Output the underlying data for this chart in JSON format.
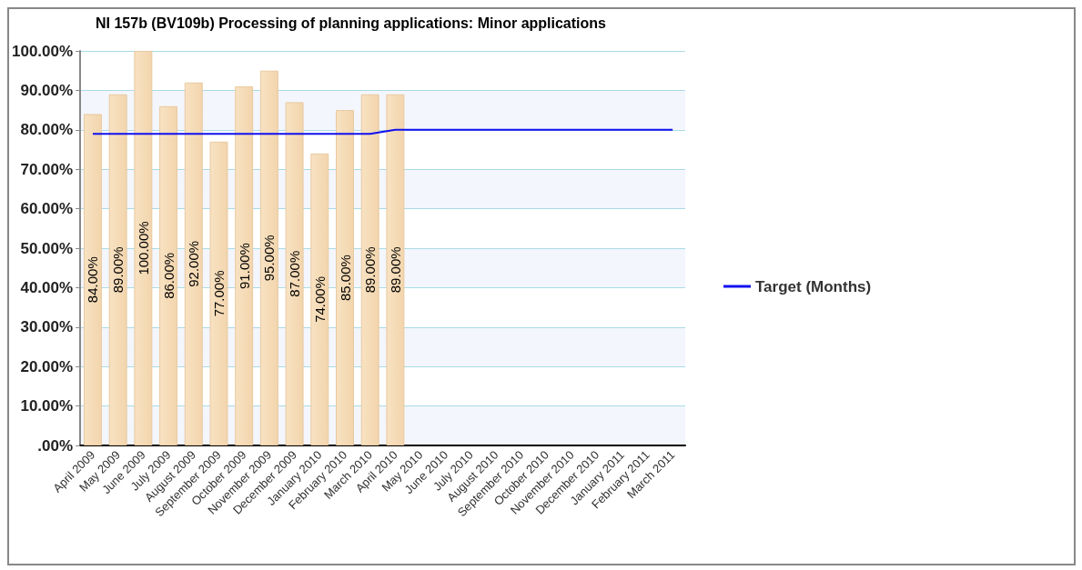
{
  "chart_data": {
    "type": "bar",
    "title": "NI 157b (BV109b) Processing of planning applications: Minor applications",
    "categories": [
      "April 2009",
      "May 2009",
      "June 2009",
      "July 2009",
      "August 2009",
      "September 2009",
      "October 2009",
      "November 2009",
      "December 2009",
      "January 2010",
      "February 2010",
      "March 2010",
      "April 2010",
      "May 2010",
      "June 2010",
      "July 2010",
      "August 2010",
      "September 2010",
      "October 2010",
      "November 2010",
      "December 2010",
      "January 2011",
      "February 2011",
      "March 2011"
    ],
    "series": [
      {
        "color": "#f2d5ad",
        "values": [
          84,
          89,
          100,
          86,
          92,
          77,
          91,
          95,
          87,
          74,
          85,
          89,
          89,
          null,
          null,
          null,
          null,
          null,
          null,
          null,
          null,
          null,
          null,
          null
        ],
        "value_labels": [
          "84.00%",
          "89.00%",
          "100.00%",
          "86.00%",
          "92.00%",
          "77.00%",
          "91.00%",
          "95.00%",
          "87.00%",
          "74.00%",
          "85.00%",
          "89.00%",
          "89.00%",
          null,
          null,
          null,
          null,
          null,
          null,
          null,
          null,
          null,
          null,
          null
        ]
      },
      {
        "type": "line",
        "name": "Target (Months)",
        "color": "#1010f0",
        "values": [
          79,
          79,
          79,
          79,
          79,
          79,
          79,
          79,
          79,
          79,
          79,
          79,
          80,
          80,
          80,
          80,
          80,
          80,
          80,
          80,
          80,
          80,
          80,
          80
        ]
      }
    ],
    "ylim": [
      0,
      100
    ],
    "yticks": [
      {
        "value": 0,
        "label": ".00%"
      },
      {
        "value": 10,
        "label": "10.00%"
      },
      {
        "value": 20,
        "label": "20.00%"
      },
      {
        "value": 30,
        "label": "30.00%"
      },
      {
        "value": 40,
        "label": "40.00%"
      },
      {
        "value": 50,
        "label": "50.00%"
      },
      {
        "value": 60,
        "label": "60.00%"
      },
      {
        "value": 70,
        "label": "70.00%"
      },
      {
        "value": 80,
        "label": "80.00%"
      },
      {
        "value": 90,
        "label": "90.00%"
      },
      {
        "value": 100,
        "label": "100.00%"
      }
    ],
    "grid": "y",
    "legend": "right",
    "marker": "none"
  }
}
